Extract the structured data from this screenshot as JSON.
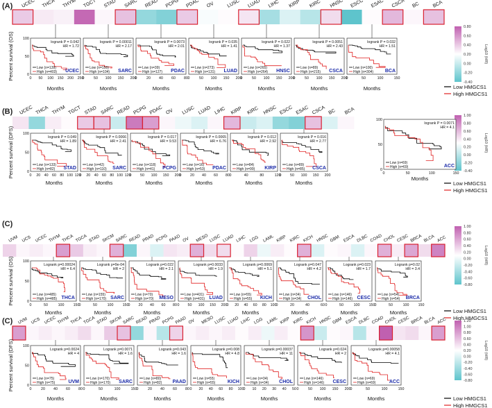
{
  "colors": {
    "low": "#000000",
    "high": "#e02020",
    "name_label": "#1a2aa8",
    "highlight": "#d92030",
    "scale_high": "#c060b0",
    "scale_mid": "#ffffff",
    "scale_low": "#5ec4cc"
  },
  "common": {
    "x_label": "Months",
    "legend_low": "Low HMGCS1",
    "legend_high": "High HMGCS1",
    "scale_title": "Log10 (HR)"
  },
  "panels": [
    {
      "letter": "(A)",
      "y_label": "Percent survival (OS)",
      "cancers": [
        "UCEC",
        "THCA",
        "THYM",
        "TGCT",
        "STAD",
        "SARC",
        "READ",
        "PCPG",
        "PDAC",
        "OV",
        "LUSC",
        "LUAD",
        "LIHC",
        "KIRP",
        "KIRC",
        "HNSC",
        "ESCC",
        "ESAC",
        "CSCA",
        "BC",
        "BCA"
      ],
      "heat": [
        0.3,
        0.12,
        0.08,
        0.85,
        0.05,
        0.35,
        -0.3,
        -0.35,
        0.3,
        -0.02,
        0.02,
        0.15,
        -0.25,
        -0.1,
        -0.2,
        0.2,
        -0.45,
        0.02,
        0.4,
        0.05,
        0.35
      ],
      "boxed": [
        0,
        5,
        8,
        11,
        15,
        18,
        20
      ],
      "scale": [
        "0.80",
        "0.60",
        "0.40",
        "0.20",
        "0.00",
        "-0.20",
        "-0.40"
      ],
      "plots": [
        {
          "name": "UCEC",
          "stat": "logrank P = 0.042",
          "hr": "HR = 1.72",
          "low": "Low (n=139)",
          "high": "High (n=403)",
          "xt": [
            "0",
            "50",
            "100",
            "150",
            "200",
            "250"
          ]
        },
        {
          "name": "SARC",
          "stat": "logrank P = 0.00011",
          "hr": "HR = 2.17",
          "low": "Low (n=155)",
          "high": "High (n=104)",
          "xt": [
            "0",
            "50",
            "100",
            "150",
            "200"
          ]
        },
        {
          "name": "PDAC",
          "stat": "logrank P = 0.0073",
          "hr": "HR = 2.01",
          "low": "Low (n=39)",
          "high": "High (n=127)",
          "xt": [
            "0",
            "20",
            "40",
            "60",
            "80"
          ]
        },
        {
          "name": "LUAD",
          "stat": "logrank P = 0.035",
          "hr": "HR = 1.41",
          "low": "Low (n=273)",
          "high": "High (n=131)",
          "xt": [
            "0",
            "50",
            "100",
            "150",
            "200"
          ]
        },
        {
          "name": "HNSC",
          "stat": "logrank P = 0.022",
          "hr": "HR = 1.37",
          "low": "Low (n=265)",
          "high": "High (n=264)",
          "xt": [
            "0",
            "50",
            "100",
            "150",
            "200"
          ]
        },
        {
          "name": "CSCA",
          "stat": "logrank P = 0.0051",
          "hr": "HR = 2.43",
          "low": "Low (n=89)",
          "high": "High (n=215)",
          "xt": [
            "0",
            "50",
            "100",
            "150",
            "200"
          ]
        },
        {
          "name": "BCA",
          "stat": "logrank P = 0.032",
          "hr": "HR = 1.51",
          "low": "Low (n=100)",
          "high": "High (n=304)",
          "xt": [
            "0",
            "50",
            "100",
            "150"
          ]
        }
      ]
    },
    {
      "letter": "(B)",
      "y_label": "Percent survival (DFS)",
      "cancers": [
        "UCEC",
        "THCA",
        "THYM",
        "TGCT",
        "STAD",
        "SARC",
        "READ",
        "PCPG",
        "PDAC",
        "OV",
        "LUSC",
        "LUAD",
        "LIHC",
        "KIRP",
        "KIRC",
        "HNSC",
        "ESCC",
        "ESAC",
        "CSCA",
        "BC",
        "BCA"
      ],
      "heat": [
        0.15,
        -0.3,
        0.1,
        0.02,
        0.3,
        0.35,
        -0.15,
        0.75,
        0.55,
        0.05,
        -0.05,
        -0.1,
        0.05,
        0.4,
        -0.15,
        -0.1,
        -0.3,
        -0.35,
        0.35,
        -0.1,
        0.05
      ],
      "boxed": [
        4,
        5,
        7,
        8,
        13,
        18
      ],
      "scale": [
        "1.00",
        "0.80",
        "0.60",
        "0.40",
        "0.20",
        "0.00",
        "-0.20",
        "-0.40"
      ],
      "plots": [
        {
          "name": "STAD",
          "stat": "logrank P = 0.049",
          "hr": "HR = 1.89",
          "low": "Low (n=133)",
          "high": "High (n=82)",
          "xt": [
            "0",
            "20",
            "40",
            "60",
            "80",
            "100",
            "120"
          ]
        },
        {
          "name": "SARC",
          "stat": "logrank P = 0.0066",
          "hr": "HR = 2.41",
          "low": "Low (n=42)",
          "high": "High (n=110)",
          "xt": [
            "0",
            "20",
            "40",
            "60",
            "80",
            "100",
            "120"
          ]
        },
        {
          "name": "PCPG",
          "stat": "logrank P = 0.017",
          "hr": "HR = 9.53",
          "low": "Low (n=118)",
          "high": "High (n=41)",
          "xt": [
            "0",
            "50",
            "100",
            "150",
            "200"
          ]
        },
        {
          "name": "PDAC",
          "stat": "logrank P = 0.0065",
          "hr": "HR = 6.76",
          "low": "Low (n=16)",
          "high": "High (n=53)",
          "xt": [
            "0",
            "20",
            "40",
            "60",
            "80"
          ]
        },
        {
          "name": "KIRP",
          "stat": "logrank P = 0.012",
          "hr": "HR = 2.92",
          "low": "Low (n=84)",
          "high": "High (n=99)",
          "xt": [
            "0",
            "40",
            "80",
            "120"
          ]
        },
        {
          "name": "CSCA",
          "stat": "logrank P = 0.016",
          "hr": "HR = 2.77",
          "low": "Low (n=89)",
          "high": "High (n=85)",
          "xt": [
            "0",
            "50",
            "100",
            "150",
            "200"
          ]
        },
        {
          "name": "ACC",
          "stat": "logrank P = 0.0071",
          "hr": "HR = 4.1",
          "low": "Low (n=69)",
          "high": "High (n=69)",
          "xt": [
            "0",
            "50",
            "100",
            "150"
          ]
        }
      ]
    },
    {
      "letter": "(C)",
      "y_label": "Percent survival (OS)",
      "cancers": [
        "UVM",
        "UCS",
        "UCEC",
        "THYM",
        "THCA",
        "TGCA",
        "STAD",
        "SKCM",
        "SARC",
        "READ",
        "PRAD",
        "PCPG",
        "PAAD",
        "OV",
        "MESO",
        "LUSC",
        "LUAD",
        "LIHC",
        "LGG",
        "LAML",
        "KIRP",
        "KIRC",
        "KICH",
        "HNSC",
        "GBM",
        "ESCA",
        "DLBC",
        "COAD",
        "CHOL",
        "CESC",
        "BRCA",
        "BLCA",
        "ACC"
      ],
      "heat": [
        0.25,
        0.05,
        0.1,
        0.05,
        0.55,
        0.3,
        0.1,
        0.05,
        0.45,
        -0.35,
        0.05,
        -0.1,
        0.15,
        0.1,
        0.45,
        0.2,
        0.2,
        0.02,
        0.25,
        -0.05,
        0.1,
        0.02,
        0.45,
        -0.1,
        0.02,
        0.05,
        -0.1,
        0.05,
        0.45,
        0.1,
        0.5,
        0.2,
        0.7
      ],
      "boxed": [
        4,
        8,
        14,
        16,
        22,
        28,
        30,
        32
      ],
      "scale": [
        "1.00",
        "0.80",
        "0.60",
        "0.40",
        "0.20",
        "0.00",
        "-0.20",
        "-0.40",
        "-0.60",
        "-0.80"
      ],
      "plots": [
        {
          "name": "THCA",
          "stat": "Logrank p=0.00024",
          "hr": "HR = 6.4",
          "low": "Low (n=485)",
          "high": "High (n=485)",
          "xt": [
            "0",
            "50",
            "100",
            "150"
          ]
        },
        {
          "name": "SARC",
          "stat": "Logrank p=9e-04",
          "hr": "HR = 2",
          "low": "Low (n=155)",
          "high": "High (n=170)",
          "xt": [
            "0",
            "50",
            "100",
            "150"
          ]
        },
        {
          "name": "MESO",
          "stat": "Logrank p=0.022",
          "hr": "HR = 2.1",
          "low": "Low (n=70)",
          "high": "High (n=70)",
          "xt": [
            "0",
            "20",
            "40",
            "60",
            "80"
          ]
        },
        {
          "name": "LUAD",
          "stat": "Logrank p=0.0033",
          "hr": "HR = 1.9",
          "low": "Low (n=431)",
          "high": "High (n=431)",
          "xt": [
            "0",
            "50",
            "100",
            "150",
            "200"
          ]
        },
        {
          "name": "KICH",
          "stat": "Logrank p=0.0069",
          "hr": "HR = 5.1",
          "low": "Low (n=55)",
          "high": "High (n=55)",
          "xt": [
            "0",
            "20",
            "40",
            "60",
            "80",
            "100"
          ]
        },
        {
          "name": "CHOL",
          "stat": "Logrank p=0.047",
          "hr": "HR = 4.2",
          "low": "Low (n=34)",
          "high": "High (n=34)",
          "xt": [
            "0",
            "20",
            "40",
            "60"
          ]
        },
        {
          "name": "CESC",
          "stat": "Logrank p=0.023",
          "hr": "HR = 1.7",
          "low": "Low (n=146)",
          "high": "High (n=146)",
          "xt": [
            "0",
            "50",
            "100",
            "150"
          ]
        },
        {
          "name": "BRCA",
          "stat": "Logrank p=0.02",
          "hr": "HR = 3.4",
          "low": "Low (n=54)",
          "high": "High (n=54)",
          "xt": [
            "0",
            "50",
            "100",
            "150"
          ]
        }
      ]
    },
    {
      "letter": "(C)",
      "y_label": "Percent survival (DFS)",
      "cancers": [
        "UVM",
        "UCS",
        "UCEC",
        "THYM",
        "THCA",
        "TGCA",
        "STAD",
        "SKCM",
        "SARC",
        "READ",
        "PRAD",
        "PCPG",
        "PAAD",
        "OV",
        "MESO",
        "LUSC",
        "LUAD",
        "LIHC",
        "LGG",
        "LAML",
        "KIRP",
        "KIRC",
        "KICH",
        "HNSC",
        "GBM",
        "ESCA",
        "DLBC",
        "COAD",
        "CHOL",
        "CESC",
        "BRCA",
        "BLCA",
        "ACC"
      ],
      "heat": [
        0.55,
        0.05,
        0.1,
        0.05,
        0.1,
        0.2,
        0.05,
        0.3,
        0.35,
        -0.3,
        0.05,
        -0.2,
        0.25,
        0.05,
        0.1,
        0.05,
        0.1,
        0.02,
        0.1,
        -0.05,
        0.1,
        0.02,
        0.6,
        -0.15,
        0.02,
        0.05,
        -0.2,
        0.05,
        0.9,
        0.15,
        0.2,
        0.05,
        0.55
      ],
      "boxed": [
        0,
        8,
        12,
        22,
        28,
        32
      ],
      "scale": [
        "1.20",
        "1.00",
        "0.80",
        "0.60",
        "0.40",
        "0.20",
        "0.00",
        "-0.20",
        "-0.40",
        "-0.60",
        "-0.80"
      ],
      "plots": [
        {
          "name": "UVM",
          "stat": "Logrank p=0.0024",
          "hr": "HR = 4",
          "low": "Low (n=75)",
          "high": "High (n=75)",
          "xt": [
            "0",
            "20",
            "40",
            "60",
            "80"
          ]
        },
        {
          "name": "SARC",
          "stat": "Logrank p=0.0071",
          "hr": "HR = 1.6",
          "low": "Low (n=170)",
          "high": "High (n=170)",
          "xt": [
            "0",
            "50",
            "100",
            "150"
          ]
        },
        {
          "name": "PAAD",
          "stat": "Logrank p=0.043",
          "hr": "HR = 1.6",
          "low": "Low (n=80)",
          "high": "High (n=82)",
          "xt": [
            "0",
            "20",
            "40",
            "60",
            "80"
          ]
        },
        {
          "name": "KICH",
          "stat": "Logrank p=0.008",
          "hr": "HR = 4.8",
          "low": "Low (n=55)",
          "high": "High (n=55)",
          "xt": [
            "0",
            "20",
            "40",
            "60",
            "80",
            "100"
          ]
        },
        {
          "name": "CHOL",
          "stat": "Logrank p=0.00037",
          "hr": "HR = 11",
          "low": "Low (n=34)",
          "high": "High (n=34)",
          "xt": [
            "0",
            "10",
            "20",
            "30",
            "40",
            "50"
          ]
        },
        {
          "name": "CESC",
          "stat": "Logrank p=0.024",
          "hr": "HR = 2",
          "low": "Low (n=146)",
          "high": "High (n=146)",
          "xt": [
            "0",
            "50",
            "100",
            "150",
            "200"
          ]
        },
        {
          "name": "ACC",
          "stat": "Logrank p=0.00058",
          "hr": "HR = 4.1",
          "low": "Low (n=69)",
          "high": "High (n=69)",
          "xt": [
            "0",
            "50",
            "100",
            "150"
          ]
        }
      ]
    }
  ]
}
